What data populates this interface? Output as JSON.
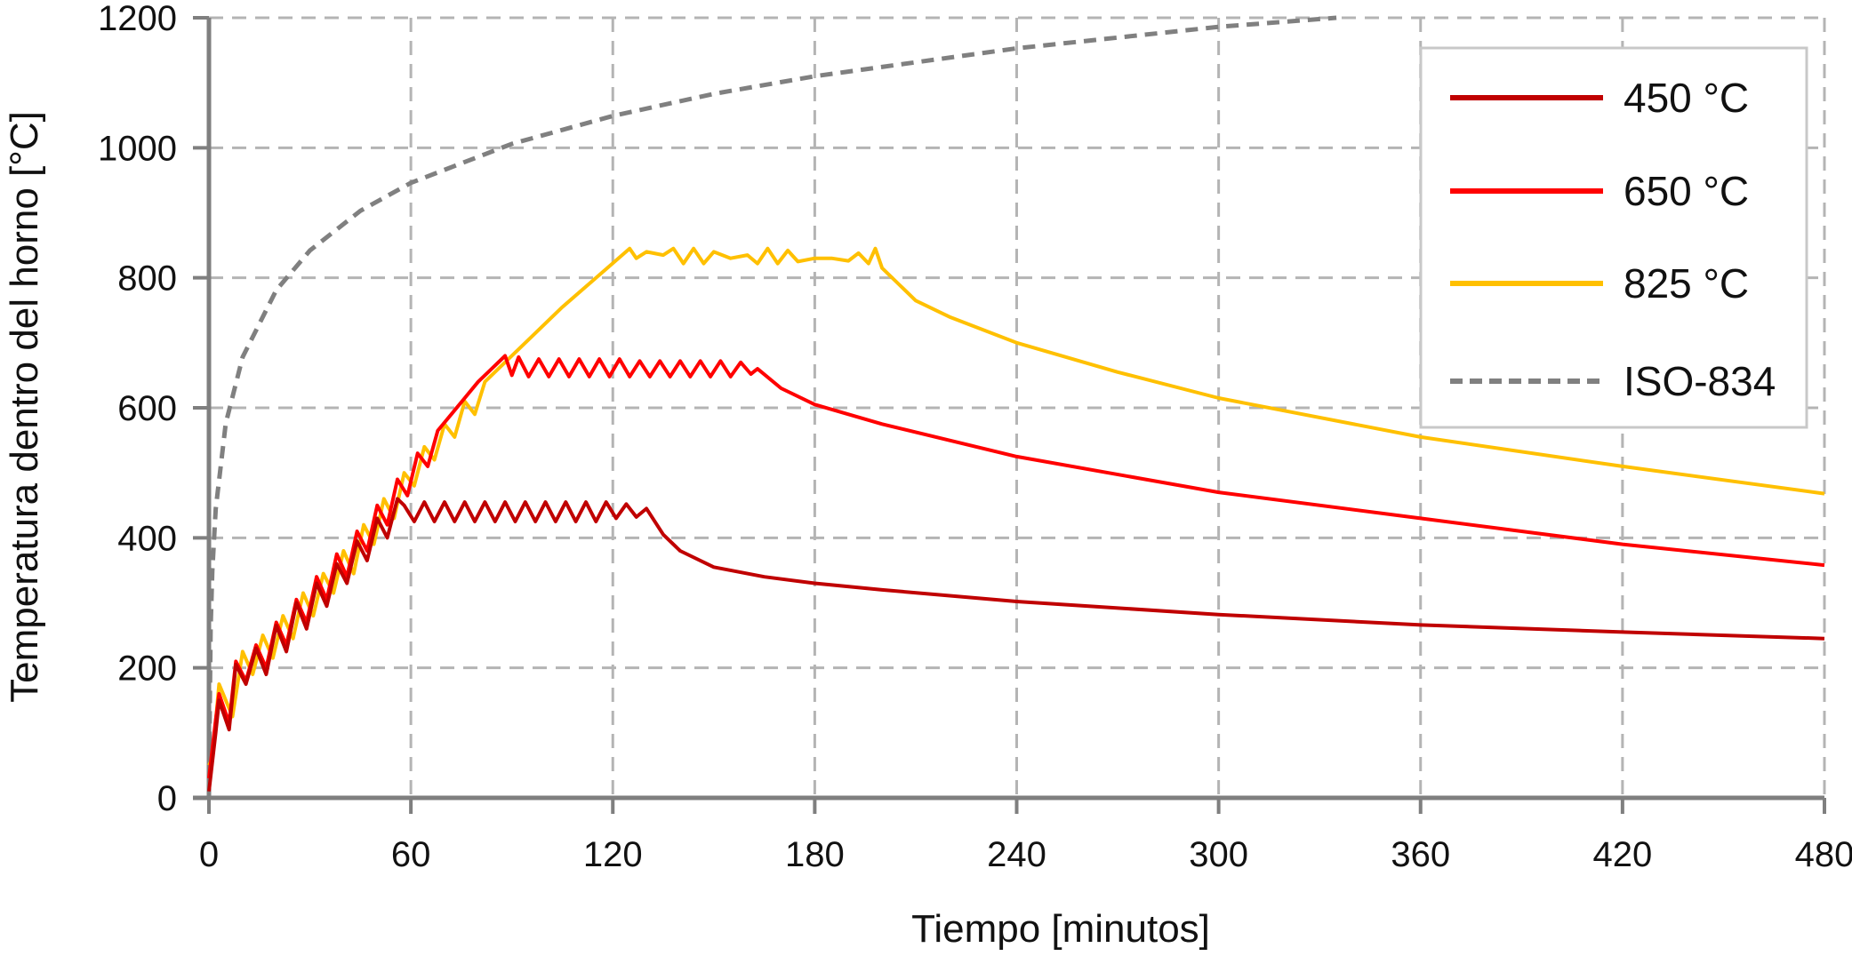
{
  "chart_data": {
    "type": "line",
    "title": "",
    "xlabel": "Tiempo [minutos]",
    "ylabel": "Temperatura dentro del horno [°C]",
    "xlim": [
      0,
      480
    ],
    "ylim": [
      0,
      1200
    ],
    "xticks": [
      0,
      60,
      120,
      180,
      240,
      300,
      360,
      420,
      480
    ],
    "yticks": [
      0,
      200,
      400,
      600,
      800,
      1000,
      1200
    ],
    "grid": true,
    "legend_position": "top-right",
    "series": [
      {
        "name": "450 °C",
        "color": "#c00000",
        "dash": false,
        "points": [
          [
            0,
            10
          ],
          [
            2,
            100
          ],
          [
            3,
            150
          ],
          [
            6,
            105
          ],
          [
            8,
            205
          ],
          [
            11,
            175
          ],
          [
            14,
            230
          ],
          [
            17,
            190
          ],
          [
            20,
            265
          ],
          [
            23,
            225
          ],
          [
            26,
            300
          ],
          [
            29,
            260
          ],
          [
            32,
            330
          ],
          [
            35,
            295
          ],
          [
            38,
            360
          ],
          [
            41,
            330
          ],
          [
            44,
            395
          ],
          [
            47,
            365
          ],
          [
            50,
            430
          ],
          [
            53,
            400
          ],
          [
            56,
            460
          ],
          [
            58,
            450
          ],
          [
            61,
            425
          ],
          [
            64,
            455
          ],
          [
            67,
            425
          ],
          [
            70,
            455
          ],
          [
            73,
            425
          ],
          [
            76,
            455
          ],
          [
            79,
            425
          ],
          [
            82,
            455
          ],
          [
            85,
            425
          ],
          [
            88,
            455
          ],
          [
            91,
            425
          ],
          [
            94,
            455
          ],
          [
            97,
            425
          ],
          [
            100,
            455
          ],
          [
            103,
            425
          ],
          [
            106,
            455
          ],
          [
            109,
            425
          ],
          [
            112,
            455
          ],
          [
            115,
            425
          ],
          [
            118,
            455
          ],
          [
            121,
            430
          ],
          [
            124,
            452
          ],
          [
            127,
            432
          ],
          [
            130,
            445
          ],
          [
            135,
            405
          ],
          [
            140,
            380
          ],
          [
            150,
            355
          ],
          [
            165,
            340
          ],
          [
            180,
            330
          ],
          [
            200,
            320
          ],
          [
            240,
            302
          ],
          [
            300,
            282
          ],
          [
            360,
            266
          ],
          [
            420,
            255
          ],
          [
            480,
            245
          ]
        ]
      },
      {
        "name": "650 °C",
        "color": "#ff0000",
        "dash": false,
        "points": [
          [
            0,
            30
          ],
          [
            2,
            120
          ],
          [
            3,
            160
          ],
          [
            6,
            115
          ],
          [
            8,
            210
          ],
          [
            11,
            180
          ],
          [
            14,
            235
          ],
          [
            17,
            200
          ],
          [
            20,
            270
          ],
          [
            23,
            235
          ],
          [
            26,
            305
          ],
          [
            29,
            270
          ],
          [
            32,
            340
          ],
          [
            35,
            305
          ],
          [
            38,
            375
          ],
          [
            41,
            340
          ],
          [
            44,
            410
          ],
          [
            47,
            380
          ],
          [
            50,
            450
          ],
          [
            53,
            420
          ],
          [
            56,
            490
          ],
          [
            59,
            465
          ],
          [
            62,
            530
          ],
          [
            65,
            510
          ],
          [
            68,
            565
          ],
          [
            72,
            590
          ],
          [
            76,
            615
          ],
          [
            80,
            640
          ],
          [
            84,
            660
          ],
          [
            88,
            680
          ],
          [
            90,
            650
          ],
          [
            92,
            678
          ],
          [
            95,
            648
          ],
          [
            98,
            675
          ],
          [
            101,
            648
          ],
          [
            104,
            675
          ],
          [
            107,
            648
          ],
          [
            110,
            675
          ],
          [
            113,
            648
          ],
          [
            116,
            675
          ],
          [
            119,
            648
          ],
          [
            122,
            675
          ],
          [
            125,
            648
          ],
          [
            128,
            672
          ],
          [
            131,
            648
          ],
          [
            134,
            672
          ],
          [
            137,
            648
          ],
          [
            140,
            672
          ],
          [
            143,
            648
          ],
          [
            146,
            672
          ],
          [
            149,
            648
          ],
          [
            152,
            672
          ],
          [
            155,
            648
          ],
          [
            158,
            670
          ],
          [
            161,
            652
          ],
          [
            163,
            660
          ],
          [
            170,
            630
          ],
          [
            180,
            605
          ],
          [
            200,
            575
          ],
          [
            240,
            525
          ],
          [
            300,
            470
          ],
          [
            360,
            430
          ],
          [
            420,
            390
          ],
          [
            480,
            358
          ]
        ]
      },
      {
        "name": "825 °C",
        "color": "#ffc000",
        "dash": false,
        "points": [
          [
            0,
            50
          ],
          [
            1,
            60
          ],
          [
            3,
            175
          ],
          [
            7,
            125
          ],
          [
            10,
            225
          ],
          [
            13,
            190
          ],
          [
            16,
            250
          ],
          [
            19,
            215
          ],
          [
            22,
            280
          ],
          [
            25,
            245
          ],
          [
            28,
            315
          ],
          [
            31,
            280
          ],
          [
            34,
            345
          ],
          [
            37,
            315
          ],
          [
            40,
            380
          ],
          [
            43,
            345
          ],
          [
            46,
            420
          ],
          [
            49,
            390
          ],
          [
            52,
            460
          ],
          [
            55,
            430
          ],
          [
            58,
            500
          ],
          [
            61,
            480
          ],
          [
            64,
            540
          ],
          [
            67,
            520
          ],
          [
            70,
            575
          ],
          [
            73,
            555
          ],
          [
            76,
            610
          ],
          [
            79,
            590
          ],
          [
            82,
            640
          ],
          [
            86,
            660
          ],
          [
            95,
            705
          ],
          [
            105,
            755
          ],
          [
            115,
            800
          ],
          [
            125,
            845
          ],
          [
            127,
            830
          ],
          [
            130,
            840
          ],
          [
            135,
            835
          ],
          [
            138,
            845
          ],
          [
            141,
            822
          ],
          [
            144,
            845
          ],
          [
            147,
            822
          ],
          [
            150,
            840
          ],
          [
            155,
            830
          ],
          [
            160,
            835
          ],
          [
            163,
            822
          ],
          [
            166,
            845
          ],
          [
            169,
            822
          ],
          [
            172,
            842
          ],
          [
            175,
            825
          ],
          [
            180,
            830
          ],
          [
            185,
            830
          ],
          [
            190,
            826
          ],
          [
            193,
            838
          ],
          [
            196,
            822
          ],
          [
            198,
            845
          ],
          [
            200,
            815
          ],
          [
            205,
            790
          ],
          [
            210,
            765
          ],
          [
            220,
            740
          ],
          [
            240,
            700
          ],
          [
            270,
            655
          ],
          [
            300,
            615
          ],
          [
            360,
            555
          ],
          [
            420,
            510
          ],
          [
            480,
            468
          ]
        ]
      },
      {
        "name": "ISO-834",
        "color": "#808080",
        "dash": true,
        "points": [
          [
            0,
            20
          ],
          [
            0.5,
            261
          ],
          [
            1,
            349
          ],
          [
            2,
            444
          ],
          [
            5,
            576
          ],
          [
            10,
            678
          ],
          [
            20,
            781
          ],
          [
            30,
            842
          ],
          [
            45,
            903
          ],
          [
            60,
            946
          ],
          [
            90,
            1006
          ],
          [
            120,
            1049
          ],
          [
            150,
            1083
          ],
          [
            180,
            1110
          ],
          [
            240,
            1153
          ],
          [
            300,
            1186
          ],
          [
            335,
            1200
          ]
        ]
      }
    ]
  }
}
